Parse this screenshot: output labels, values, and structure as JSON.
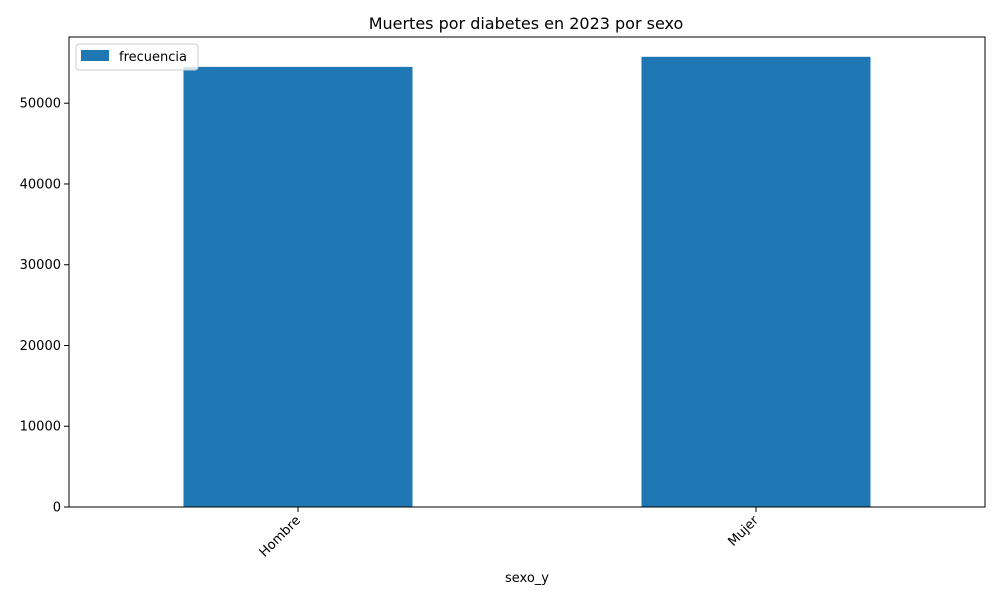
{
  "chart_data": {
    "type": "bar",
    "title": "Muertes por diabetes en 2023 por sexo",
    "xlabel": "sexo_y",
    "ylabel": "",
    "categories": [
      "Hombre",
      "Mujer"
    ],
    "series": [
      {
        "name": "frecuencia",
        "values": [
          54500,
          55750
        ],
        "color": "#1f77b4"
      }
    ],
    "ylim": [
      0,
      58200
    ],
    "yticks": [
      0,
      10000,
      20000,
      30000,
      40000,
      50000
    ],
    "ytick_labels": [
      "0",
      "10000",
      "20000",
      "30000",
      "40000",
      "50000"
    ],
    "grid": false,
    "legend_position": "top-left",
    "xtick_rotation": "45"
  }
}
